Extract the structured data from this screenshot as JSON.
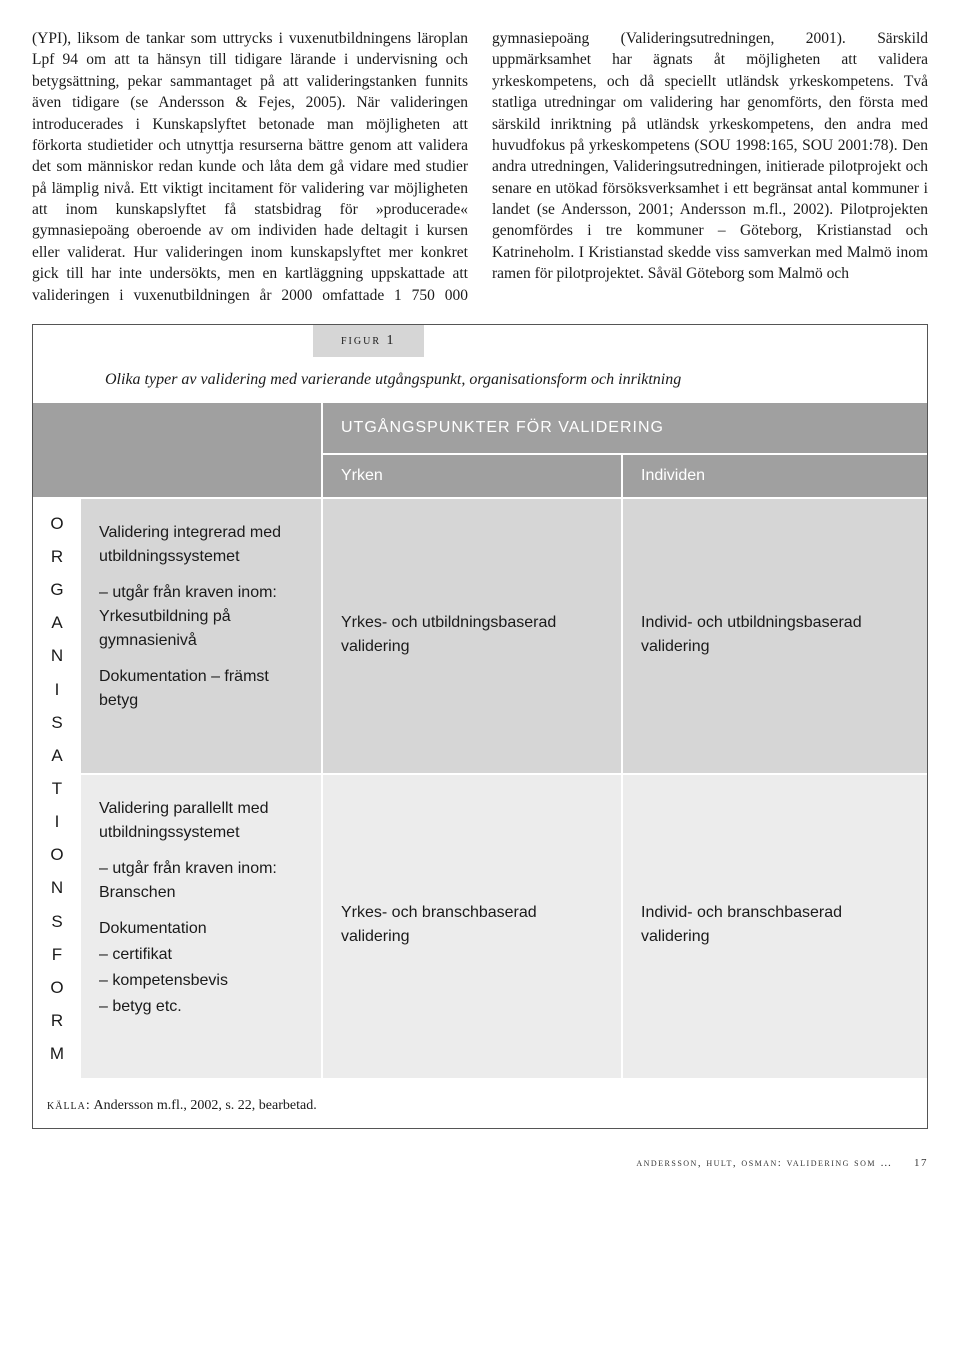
{
  "columns_text": "(YPI), liksom de tankar som uttrycks i vuxenutbildningens läroplan Lpf 94 om att ta hänsyn till tidigare lärande i undervisning och betygsättning, pekar sammantaget på att valideringstanken funnits även tidigare (se Andersson & Fejes, 2005). När valideringen introducerades i Kunskapslyftet betonade man möjligheten att förkorta studietider och utnyttja resurserna bättre genom att validera det som människor redan kunde och låta dem gå vidare med studier på lämplig nivå. Ett viktigt incitament för validering var möjligheten att inom kunskapslyftet få statsbidrag för »producerade« gymnasiepoäng oberoende av om individen hade deltagit i kursen eller validerat. Hur valideringen inom kunskapslyftet mer konkret gick till har inte undersökts, men en kartläggning uppskattade att valideringen i vuxenutbildningen år 2000 omfattade 1 750 000 gymnasiepoäng (Valideringsutredningen, 2001). Särskild uppmärksamhet har ägnats åt möjligheten att validera yrkeskompetens, och då speciellt utländsk yrkeskompetens. Två statliga utredningar om validering har genomförts, den första med särskild inriktning på utländsk yrkeskompetens, den andra med huvudfokus på yrkeskompetens (SOU 1998:165, SOU 2001:78). Den andra utredningen, Valideringsutredningen, initierade pilotprojekt och senare en utökad försöksverksamhet i ett begränsat antal kommuner i landet (se Andersson, 2001; Andersson m.fl., 2002). Pilotprojekten genomfördes i tre kommuner – Göteborg, Kristianstad och Katrineholm. I Kristianstad skedde viss samverkan med Malmö inom ramen för pilotprojektet. Såväl Göteborg som Malmö och",
  "figure": {
    "label": "figur 1",
    "caption": "Olika typer av validering med varierande utgångspunkt, organisationsform och inriktning",
    "header_top": "UTGÅNGSPUNKTER FÖR VALIDERING",
    "col_yrken": "Yrken",
    "col_individen": "Individen",
    "vertical_label": "ORGANISATIONSFORM",
    "rowA": {
      "left_title": "Validering integrerad med utbildningssystemet",
      "left_sub1": "– utgår från kraven inom: Yrkesutbildning på gymnasienivå",
      "left_sub2": "Dokumentation – främst betyg",
      "mid": "Yrkes- och utbildningsbaserad validering",
      "right": "Individ- och utbildningsbaserad validering"
    },
    "rowB": {
      "left_title": "Validering parallellt med utbildningssystemet",
      "left_sub1": "– utgår från kraven inom: Branschen",
      "left_sub2_a": "Dokumentation",
      "left_sub2_b": "– certifikat",
      "left_sub2_c": "– kompetensbevis",
      "left_sub2_d": "– betyg etc.",
      "mid": "Yrkes- och branschbaserad validering",
      "right": "Individ- och branschbaserad validering"
    },
    "colors": {
      "header_bg": "#a0a0a0",
      "rowA_bg": "#d6d6d6",
      "rowB_bg": "#ececec",
      "border": "#ffffff"
    }
  },
  "source_label": "källa:",
  "source_text": " Andersson m.fl., 2002, s. 22, bearbetad.",
  "footer_left": "andersson, hult, osman: validering som …",
  "footer_page": "17"
}
